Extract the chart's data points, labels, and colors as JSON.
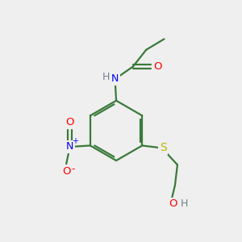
{
  "background_color": "#efefef",
  "atom_colors": {
    "C": "#3a7a3a",
    "H": "#708090",
    "N_blue": "#0000ff",
    "O": "#ff0000",
    "S": "#b8b800"
  },
  "bond_color": "#3a7a3a",
  "bond_width": 1.6,
  "figsize": [
    3.0,
    3.0
  ],
  "dpi": 100
}
